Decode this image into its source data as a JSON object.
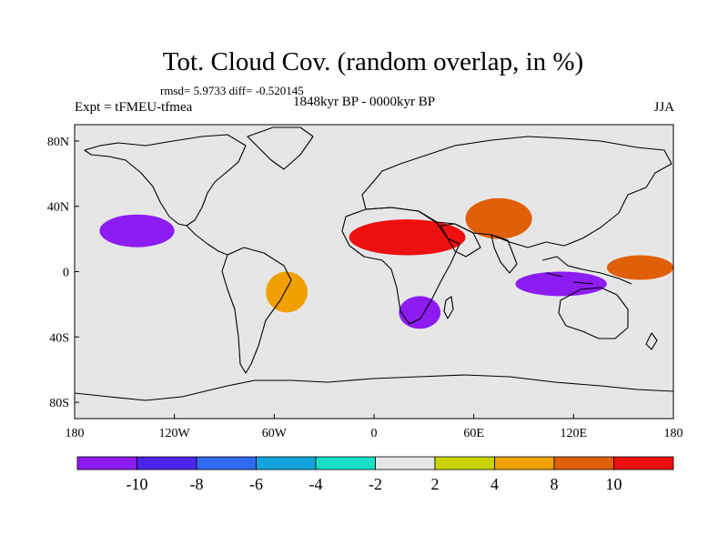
{
  "title": "Tot. Cloud Cov. (random overlap, in %)",
  "stats_line": "rmsd= 5.9733 diff= -0.520145",
  "experiment_label": "Expt = tFMEU-tfmea",
  "period_label": "1848kyr BP - 0000kyr BP",
  "season_label": "JJA",
  "colors": {
    "ocean_background": "#e6e6e6",
    "coastline": "#000000",
    "bins": [
      "#8d1cf2",
      "#4b24ea",
      "#2f6af0",
      "#16a4dc",
      "#19e0c4",
      "#e6e6e6",
      "#c8d400",
      "#f0a000",
      "#e0600a",
      "#ee1010"
    ]
  },
  "chart_data": {
    "type": "heatmap",
    "title": "Tot. Cloud Cov. (random overlap, in %)",
    "projection": "cylindrical-equidistant",
    "xlim": [
      -180,
      180
    ],
    "ylim": [
      -90,
      90
    ],
    "x_ticks": [
      {
        "value": -180,
        "label": "180"
      },
      {
        "value": -120,
        "label": "120W"
      },
      {
        "value": -60,
        "label": "60W"
      },
      {
        "value": 0,
        "label": "0"
      },
      {
        "value": 60,
        "label": "60E"
      },
      {
        "value": 120,
        "label": "120E"
      },
      {
        "value": 180,
        "label": "180"
      }
    ],
    "y_ticks": [
      {
        "value": 80,
        "label": "80N"
      },
      {
        "value": 40,
        "label": "40N"
      },
      {
        "value": 0,
        "label": "0"
      },
      {
        "value": -40,
        "label": "40S"
      },
      {
        "value": -80,
        "label": "80S"
      }
    ],
    "colorbar": {
      "boundaries": [
        -10,
        -8,
        -6,
        -4,
        -2,
        2,
        4,
        8,
        10
      ],
      "boundary_labels": [
        "-10",
        "-8",
        "-6",
        "-4",
        "-2",
        "2",
        "4",
        "8",
        "10"
      ],
      "bin_count": 10
    },
    "field_regions": [
      {
        "region": "Sahara / Arabia",
        "lon": [
          -15,
          55
        ],
        "lat": [
          10,
          32
        ],
        "value": 11
      },
      {
        "region": "Central Asia",
        "lon": [
          55,
          95
        ],
        "lat": [
          20,
          45
        ],
        "value": 9
      },
      {
        "region": "North Pacific",
        "lon": [
          -165,
          -120
        ],
        "lat": [
          15,
          35
        ],
        "value": -11
      },
      {
        "region": "Tropical Indian Ocean / Maritime Continent",
        "lon": [
          85,
          140
        ],
        "lat": [
          -15,
          0
        ],
        "value": -11
      },
      {
        "region": "Southern Africa",
        "lon": [
          15,
          40
        ],
        "lat": [
          -35,
          -15
        ],
        "value": -11
      },
      {
        "region": "South America",
        "lon": [
          -65,
          -40
        ],
        "lat": [
          -25,
          0
        ],
        "value": 6
      },
      {
        "region": "Western Pacific",
        "lon": [
          140,
          180
        ],
        "lat": [
          -5,
          10
        ],
        "value": 8
      }
    ]
  }
}
